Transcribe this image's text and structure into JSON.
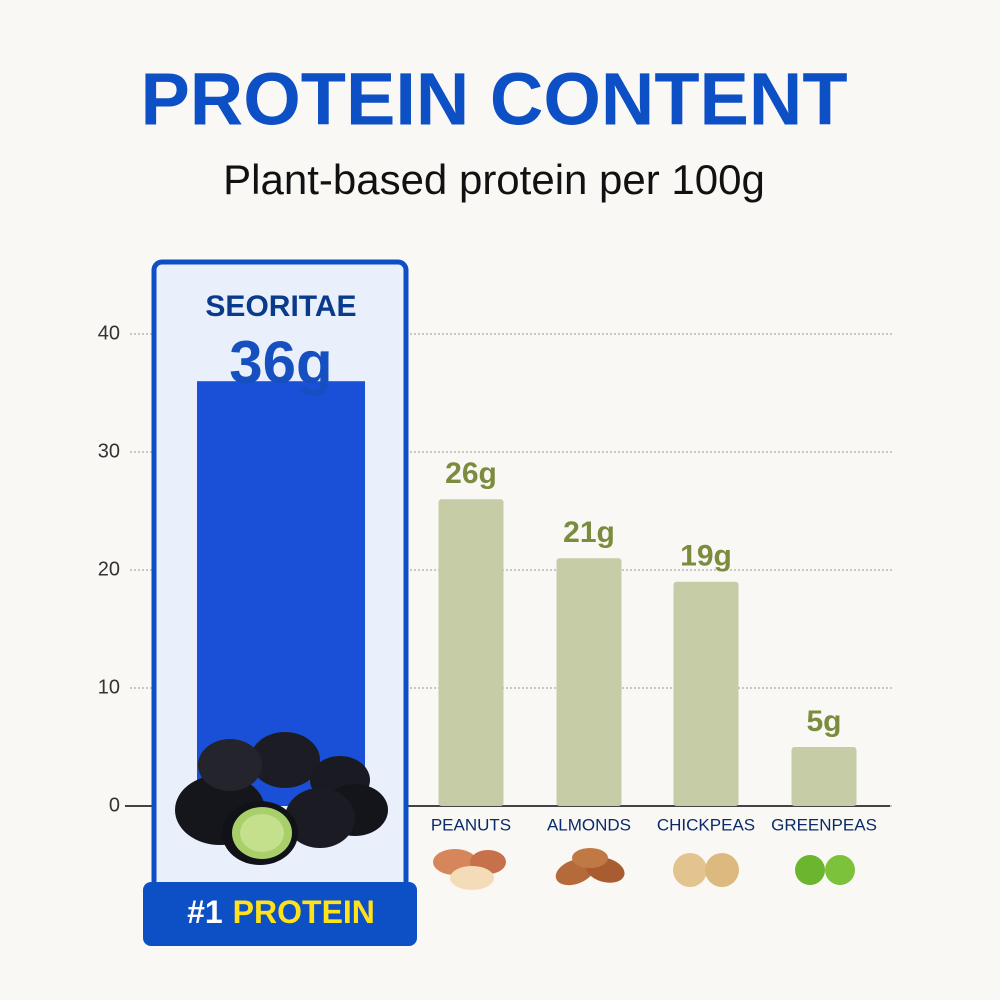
{
  "chart_data": {
    "type": "bar",
    "title": "PROTEIN CONTENT",
    "subtitle": "Plant-based protein per 100g",
    "categories": [
      "SEORITAE",
      "PEANUTS",
      "ALMONDS",
      "CHICKPEAS",
      "GREENPEAS"
    ],
    "values": [
      36,
      26,
      21,
      19,
      5
    ],
    "value_labels": [
      "36g",
      "26g",
      "21g",
      "19g",
      "5g"
    ],
    "colors": [
      "#1a50d8",
      "#c6cca6",
      "#c6cca6",
      "#c6cca6",
      "#c6cca6"
    ],
    "label_colors": [
      "#1650c0",
      "#7b8c3f",
      "#7b8c3f",
      "#7b8c3f",
      "#7b8c3f"
    ],
    "highlight_index": 0,
    "badge": [
      "#1",
      "PROTEIN"
    ],
    "ylim": [
      0,
      40
    ],
    "yticks": [
      0,
      10,
      20,
      30,
      40
    ],
    "grid": true
  }
}
